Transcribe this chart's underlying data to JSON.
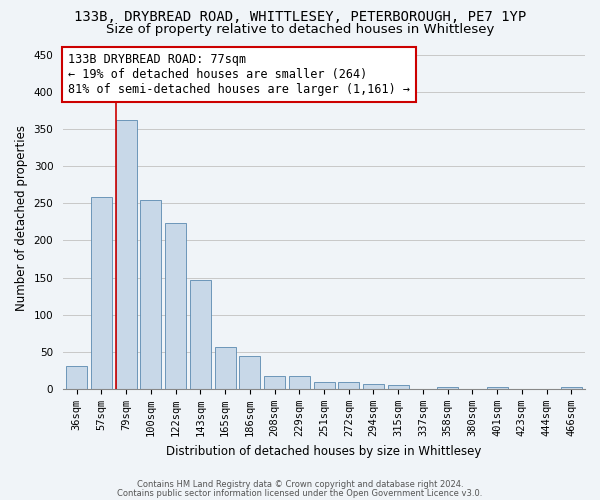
{
  "title_line1": "133B, DRYBREAD ROAD, WHITTLESEY, PETERBOROUGH, PE7 1YP",
  "title_line2": "Size of property relative to detached houses in Whittlesey",
  "xlabel": "Distribution of detached houses by size in Whittlesey",
  "ylabel": "Number of detached properties",
  "footnote1": "Contains HM Land Registry data © Crown copyright and database right 2024.",
  "footnote2": "Contains public sector information licensed under the Open Government Licence v3.0.",
  "bar_labels": [
    "36sqm",
    "57sqm",
    "79sqm",
    "100sqm",
    "122sqm",
    "143sqm",
    "165sqm",
    "186sqm",
    "208sqm",
    "229sqm",
    "251sqm",
    "272sqm",
    "294sqm",
    "315sqm",
    "337sqm",
    "358sqm",
    "380sqm",
    "401sqm",
    "423sqm",
    "444sqm",
    "466sqm"
  ],
  "bar_values": [
    31,
    259,
    362,
    255,
    224,
    147,
    56,
    44,
    17,
    17,
    10,
    10,
    7,
    5,
    0,
    3,
    0,
    2,
    0,
    0,
    2
  ],
  "bar_color": "#c8d8e8",
  "bar_edge_color": "#5a8ab0",
  "highlight_bar_index": 2,
  "highlight_line_color": "#cc0000",
  "annotation_line1": "133B DRYBREAD ROAD: 77sqm",
  "annotation_line2": "← 19% of detached houses are smaller (264)",
  "annotation_line3": "81% of semi-detached houses are larger (1,161) →",
  "annotation_box_color": "#cc0000",
  "ylim": [
    0,
    460
  ],
  "yticks": [
    0,
    50,
    100,
    150,
    200,
    250,
    300,
    350,
    400,
    450
  ],
  "grid_color": "#c8c8c8",
  "background_color": "#f0f4f8",
  "title_fontsize": 10,
  "subtitle_fontsize": 9.5,
  "axis_label_fontsize": 8.5,
  "tick_fontsize": 7.5,
  "annotation_fontsize": 8.5
}
